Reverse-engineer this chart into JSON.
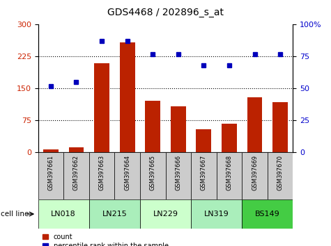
{
  "title": "GDS4468 / 202896_s_at",
  "samples": [
    "GSM397661",
    "GSM397662",
    "GSM397663",
    "GSM397664",
    "GSM397665",
    "GSM397666",
    "GSM397667",
    "GSM397668",
    "GSM397669",
    "GSM397670"
  ],
  "counts": [
    8,
    13,
    210,
    258,
    122,
    108,
    55,
    68,
    130,
    118
  ],
  "percentile": [
    52,
    55,
    87,
    87,
    77,
    77,
    68,
    68,
    77,
    77
  ],
  "cell_lines": [
    {
      "name": "LN018",
      "samples": [
        0,
        1
      ],
      "color": "#ccffcc"
    },
    {
      "name": "LN215",
      "samples": [
        2,
        3
      ],
      "color": "#aaeebb"
    },
    {
      "name": "LN229",
      "samples": [
        4,
        5
      ],
      "color": "#ccffcc"
    },
    {
      "name": "LN319",
      "samples": [
        6,
        7
      ],
      "color": "#aaeebb"
    },
    {
      "name": "BS149",
      "samples": [
        8,
        9
      ],
      "color": "#44cc44"
    }
  ],
  "ylim_left": [
    0,
    300
  ],
  "ylim_right": [
    0,
    100
  ],
  "yticks_left": [
    0,
    75,
    150,
    225,
    300
  ],
  "yticks_right": [
    0,
    25,
    50,
    75,
    100
  ],
  "grid_vals": [
    75,
    150,
    225
  ],
  "bar_color": "#bb2200",
  "dot_color": "#0000bb",
  "tick_label_color_left": "#cc2200",
  "tick_label_color_right": "#0000cc",
  "sample_bg_color": "#cccccc",
  "figsize": [
    4.75,
    3.54
  ],
  "dpi": 100
}
